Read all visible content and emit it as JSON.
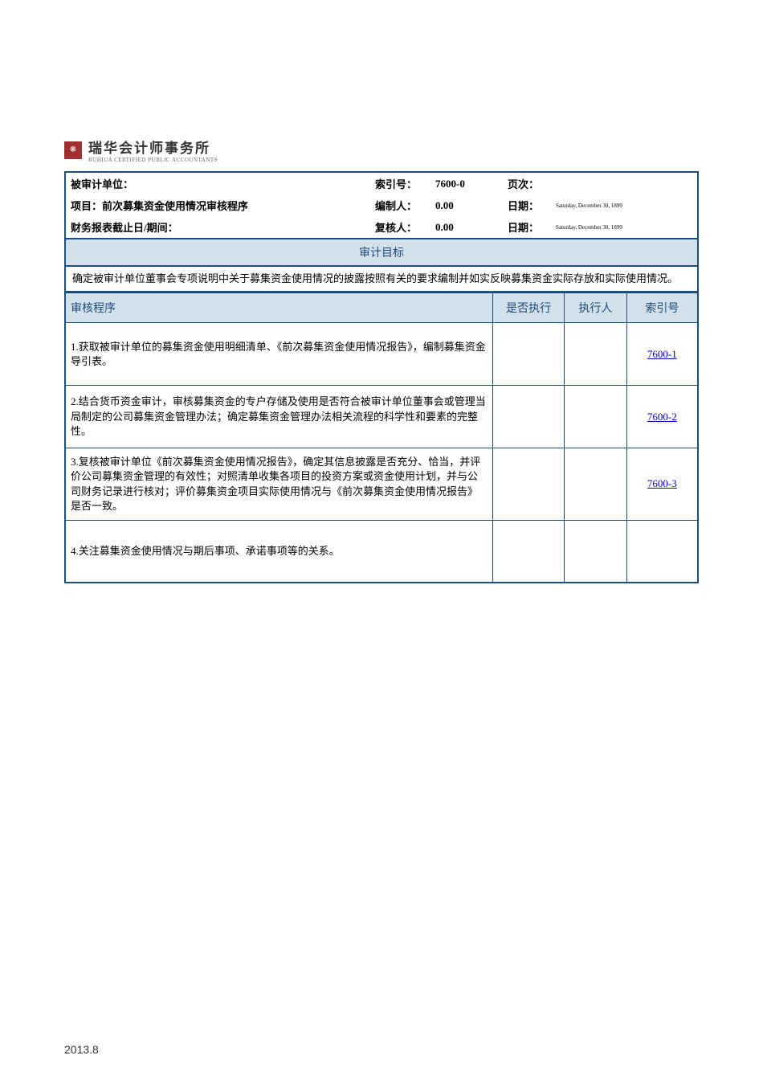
{
  "logo": {
    "title": "瑞华会计师事务所",
    "subtitle": "RUIHUA CERTIFIED PUBLIC ACCOUNTANTS"
  },
  "header": {
    "row1": {
      "label1": "被审计单位：",
      "label2": "索引号：",
      "val1": "7600-0",
      "label3": "页次：",
      "val2": ""
    },
    "row2": {
      "label1": "项目：前次募集资金使用情况审核程序",
      "label2": "编制人：",
      "val1": "0.00",
      "label3": "日期：",
      "val2": "Saturday, December 30, 1899"
    },
    "row3": {
      "label1": "财务报表截止日/期间：",
      "label2": "复核人：",
      "val1": "0.00",
      "label3": "日期：",
      "val2": "Saturday, December 30, 1899"
    }
  },
  "section_title": "审计目标",
  "objective": "确定被审计单位董事会专项说明中关于募集资金使用情况的披露按照有关的要求编制并如实反映募集资金实际存放和实际使用情况。",
  "table_headers": {
    "procedure": "审核程序",
    "executed": "是否执行",
    "executor": "执行人",
    "index": "索引号"
  },
  "rows": [
    {
      "procedure": "1.获取被审计单位的募集资金使用明细清单、《前次募集资金使用情况报告》，编制募集资金导引表。",
      "executed": "",
      "executor": "",
      "index": "7600-1"
    },
    {
      "procedure": "2.结合货币资金审计，审核募集资金的专户存储及使用是否符合被审计单位董事会或管理当局制定的公司募集资金管理办法；确定募集资金管理办法相关流程的科学性和要素的完整性。",
      "executed": "",
      "executor": "",
      "index": "7600-2"
    },
    {
      "procedure": "3.复核被审计单位《前次募集资金使用情况报告》，确定其信息披露是否充分、恰当，并评价公司募集资金管理的有效性；对照清单收集各项目的投资方案或资金使用计划，并与公司财务记录进行核对；评价募集资金项目实际使用情况与《前次募集资金使用情况报告》是否一致。",
      "executed": "",
      "executor": "",
      "index": "7600-3"
    },
    {
      "procedure": "4.关注募集资金使用情况与期后事项、承诺事项等的关系。",
      "executed": "",
      "executor": "",
      "index": ""
    }
  ],
  "footer": "2013.8",
  "colors": {
    "border": "#1a4d7a",
    "header_bg": "#d3e0ec",
    "link": "#0000cc"
  }
}
